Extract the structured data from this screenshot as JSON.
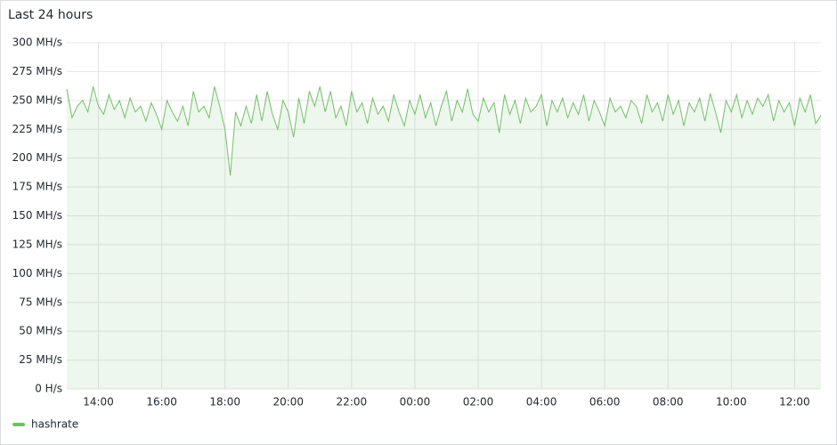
{
  "chart_data": {
    "type": "line",
    "title": "Last 24 hours",
    "x": [
      "13:00",
      "13:10",
      "13:20",
      "13:30",
      "13:40",
      "13:50",
      "14:00",
      "14:10",
      "14:20",
      "14:30",
      "14:40",
      "14:50",
      "15:00",
      "15:10",
      "15:20",
      "15:30",
      "15:40",
      "15:50",
      "16:00",
      "16:10",
      "16:20",
      "16:30",
      "16:40",
      "16:50",
      "17:00",
      "17:10",
      "17:20",
      "17:30",
      "17:40",
      "17:50",
      "18:00",
      "18:10",
      "18:20",
      "18:30",
      "18:40",
      "18:50",
      "19:00",
      "19:10",
      "19:20",
      "19:30",
      "19:40",
      "19:50",
      "20:00",
      "20:10",
      "20:20",
      "20:30",
      "20:40",
      "20:50",
      "21:00",
      "21:10",
      "21:20",
      "21:30",
      "21:40",
      "21:50",
      "22:00",
      "22:10",
      "22:20",
      "22:30",
      "22:40",
      "22:50",
      "23:00",
      "23:10",
      "23:20",
      "23:30",
      "23:40",
      "23:50",
      "00:00",
      "00:10",
      "00:20",
      "00:30",
      "00:40",
      "00:50",
      "01:00",
      "01:10",
      "01:20",
      "01:30",
      "01:40",
      "01:50",
      "02:00",
      "02:10",
      "02:20",
      "02:30",
      "02:40",
      "02:50",
      "03:00",
      "03:10",
      "03:20",
      "03:30",
      "03:40",
      "03:50",
      "04:00",
      "04:10",
      "04:20",
      "04:30",
      "04:40",
      "04:50",
      "05:00",
      "05:10",
      "05:20",
      "05:30",
      "05:40",
      "05:50",
      "06:00",
      "06:10",
      "06:20",
      "06:30",
      "06:40",
      "06:50",
      "07:00",
      "07:10",
      "07:20",
      "07:30",
      "07:40",
      "07:50",
      "08:00",
      "08:10",
      "08:20",
      "08:30",
      "08:40",
      "08:50",
      "09:00",
      "09:10",
      "09:20",
      "09:30",
      "09:40",
      "09:50",
      "10:00",
      "10:10",
      "10:20",
      "10:30",
      "10:40",
      "10:50",
      "11:00",
      "11:10",
      "11:20",
      "11:30",
      "11:40",
      "11:50",
      "12:00",
      "12:10",
      "12:20",
      "12:30",
      "12:40",
      "12:50"
    ],
    "series": [
      {
        "name": "hashrate",
        "color": "#73bf69",
        "values": [
          260,
          235,
          245,
          250,
          240,
          262,
          245,
          238,
          255,
          242,
          250,
          235,
          252,
          240,
          245,
          232,
          248,
          238,
          225,
          250,
          240,
          232,
          245,
          228,
          258,
          240,
          245,
          235,
          262,
          245,
          225,
          185,
          240,
          228,
          245,
          230,
          255,
          232,
          258,
          238,
          225,
          250,
          240,
          218,
          252,
          230,
          258,
          245,
          262,
          240,
          258,
          235,
          245,
          228,
          258,
          240,
          248,
          230,
          252,
          238,
          245,
          232,
          255,
          240,
          228,
          250,
          238,
          255,
          235,
          248,
          228,
          245,
          258,
          232,
          250,
          240,
          260,
          238,
          232,
          252,
          240,
          248,
          222,
          255,
          238,
          250,
          230,
          252,
          240,
          245,
          255,
          228,
          250,
          240,
          252,
          235,
          248,
          238,
          255,
          232,
          250,
          240,
          228,
          252,
          240,
          245,
          235,
          250,
          245,
          230,
          255,
          240,
          248,
          232,
          255,
          238,
          250,
          228,
          248,
          240,
          252,
          232,
          256,
          240,
          222,
          250,
          240,
          255,
          235,
          250,
          238,
          252,
          245,
          255,
          232,
          250,
          240,
          248,
          228,
          252,
          240,
          255,
          230,
          237
        ]
      }
    ],
    "xticks": [
      "14:00",
      "16:00",
      "18:00",
      "20:00",
      "22:00",
      "00:00",
      "02:00",
      "04:00",
      "06:00",
      "08:00",
      "10:00",
      "12:00"
    ],
    "ylim": [
      0,
      300
    ],
    "yticks": [
      {
        "value": 0,
        "label": "0 H/s"
      },
      {
        "value": 25,
        "label": "25 MH/s"
      },
      {
        "value": 50,
        "label": "50 MH/s"
      },
      {
        "value": 75,
        "label": "75 MH/s"
      },
      {
        "value": 100,
        "label": "100 MH/s"
      },
      {
        "value": 125,
        "label": "125 MH/s"
      },
      {
        "value": 150,
        "label": "150 MH/s"
      },
      {
        "value": 175,
        "label": "175 MH/s"
      },
      {
        "value": 200,
        "label": "200 MH/s"
      },
      {
        "value": 225,
        "label": "225 MH/s"
      },
      {
        "value": 250,
        "label": "250 MH/s"
      },
      {
        "value": 275,
        "label": "275 MH/s"
      },
      {
        "value": 300,
        "label": "300 MH/s"
      }
    ],
    "grid": true
  }
}
